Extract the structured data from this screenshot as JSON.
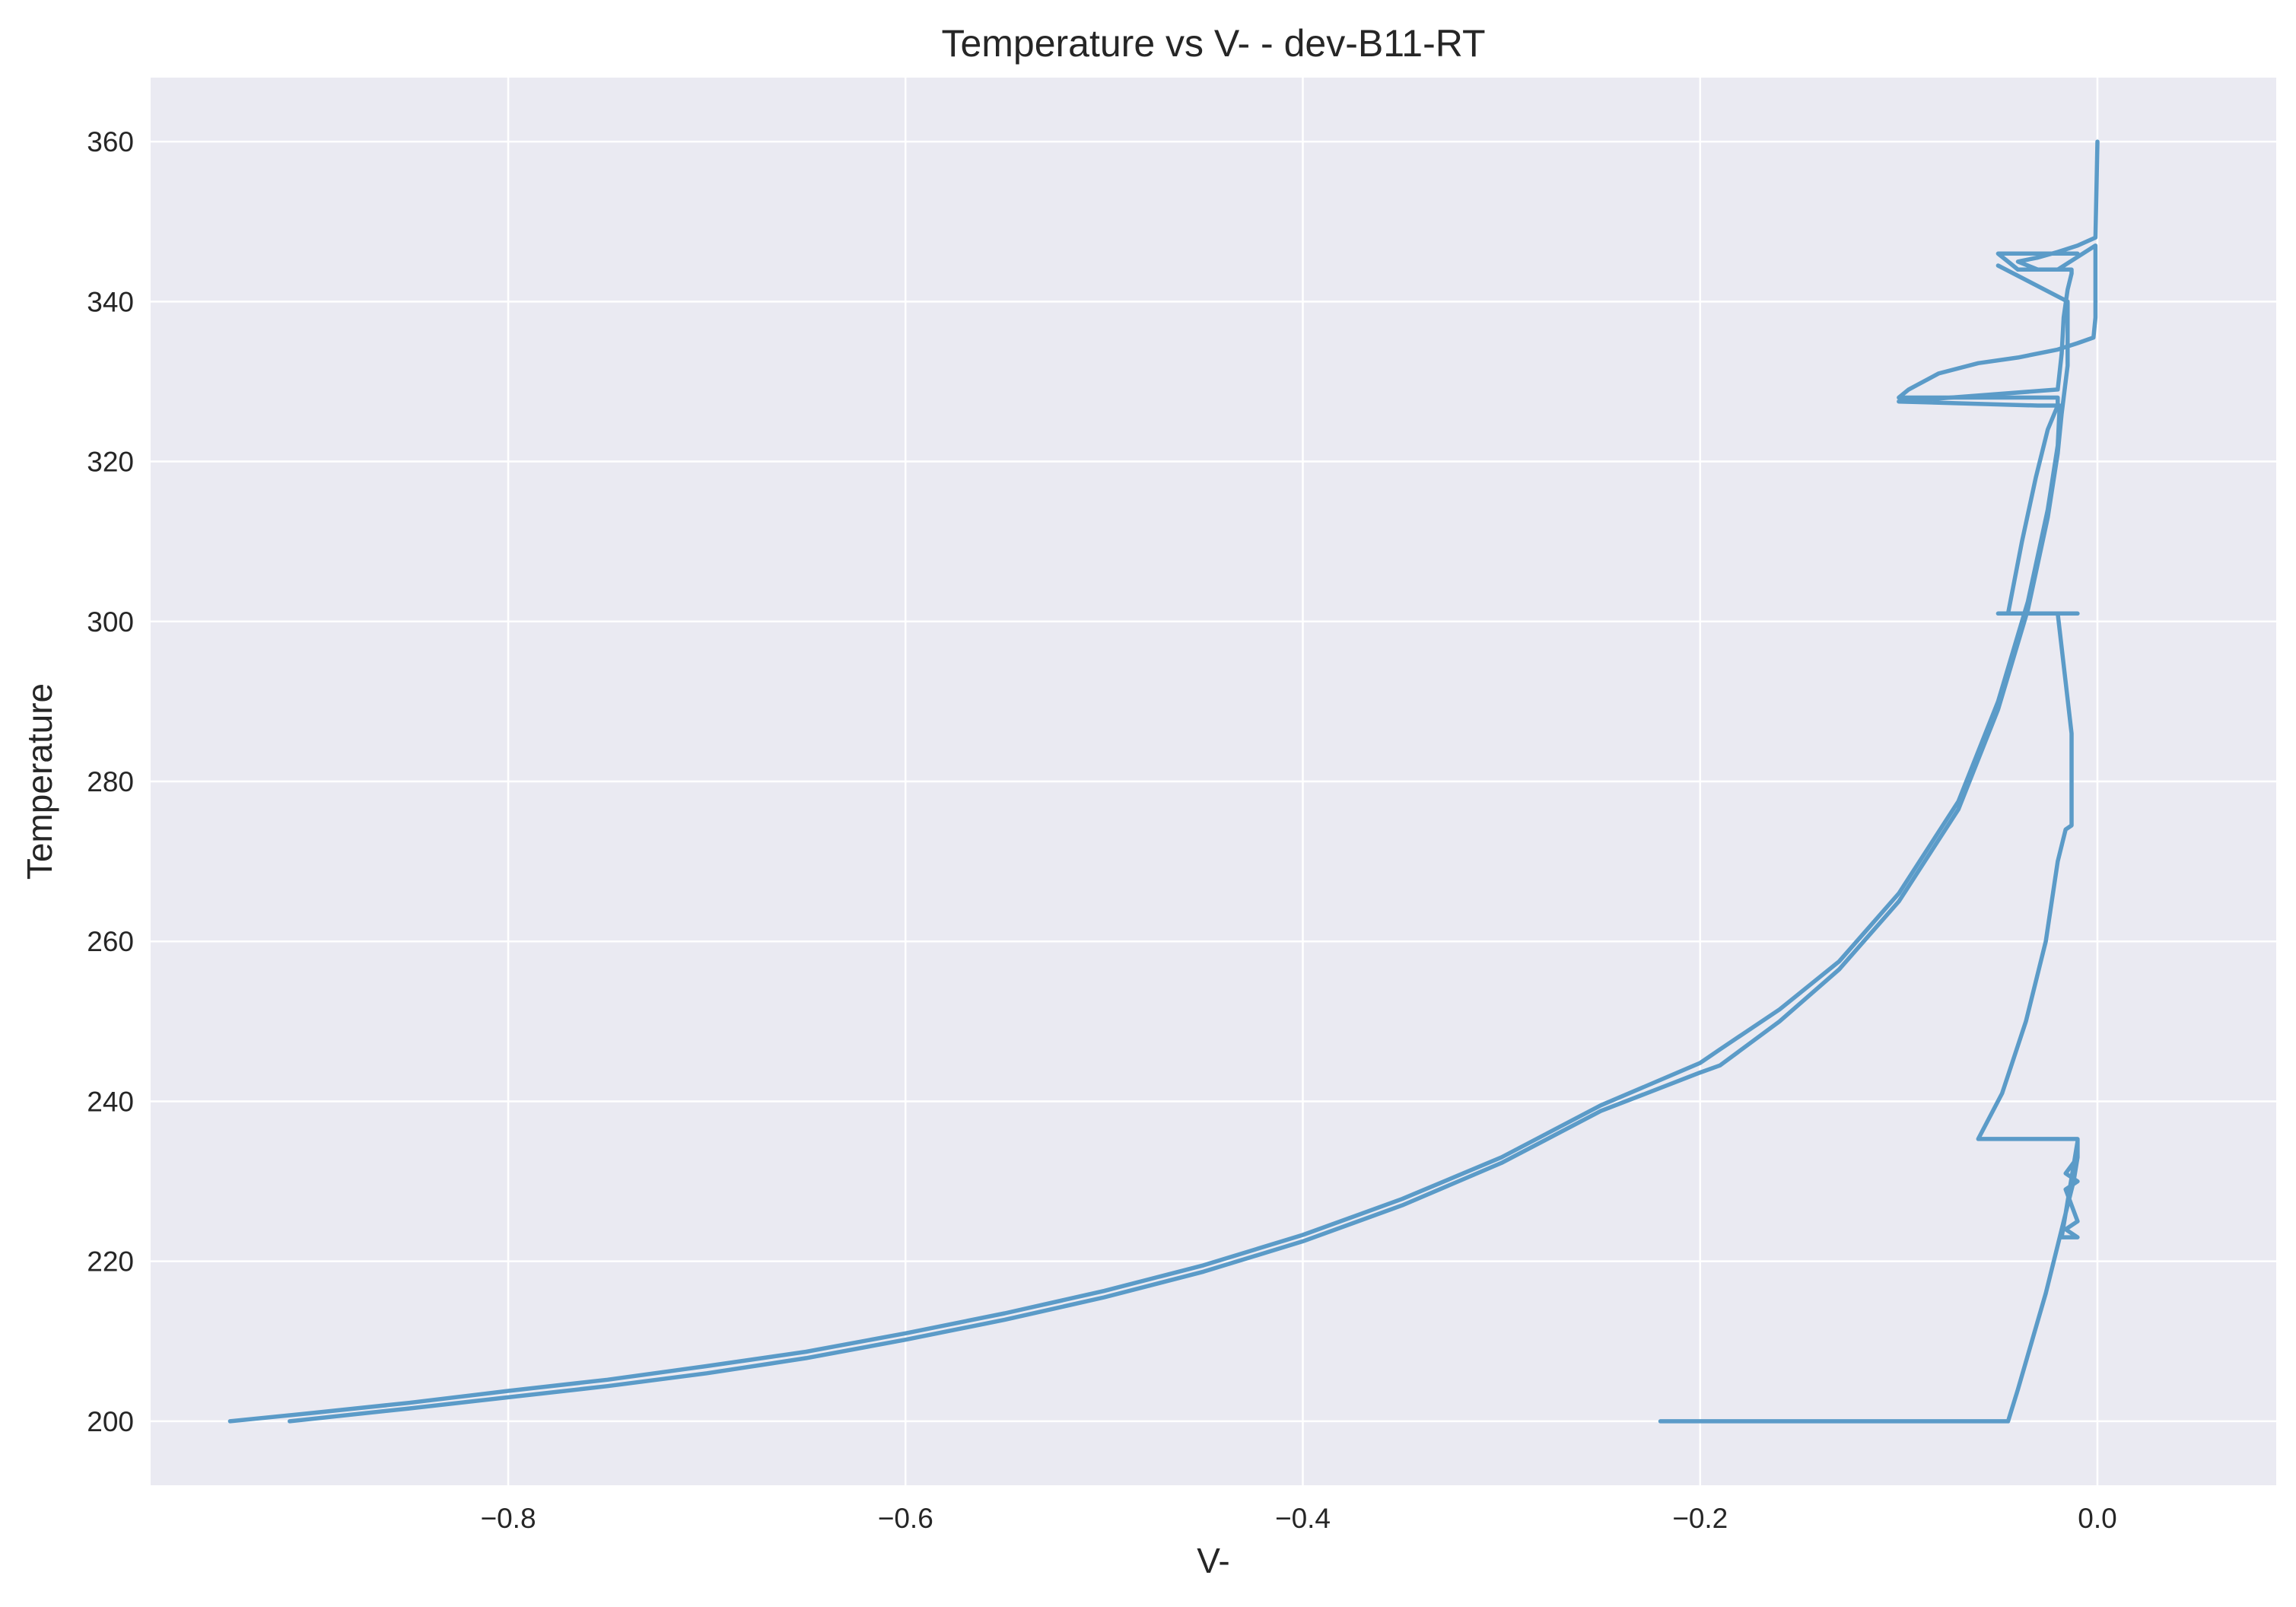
{
  "chart_data": {
    "type": "line",
    "title": "Temperature vs V- - dev-B11-RT",
    "xlabel": "V-",
    "ylabel": "Temperature",
    "xlim": [
      -0.98,
      0.09
    ],
    "ylim": [
      192,
      368
    ],
    "xticks": [
      -0.8,
      -0.6,
      -0.4,
      -0.2,
      0.0
    ],
    "xtick_labels": [
      "−0.8",
      "−0.6",
      "−0.4",
      "−0.2",
      "0.0"
    ],
    "yticks": [
      200,
      220,
      240,
      260,
      280,
      300,
      320,
      340,
      360
    ],
    "ytick_labels": [
      "200",
      "220",
      "240",
      "260",
      "280",
      "300",
      "320",
      "340",
      "360"
    ],
    "grid": true,
    "background": "#eaeaf2",
    "color": "#5b9bc8",
    "series": [
      {
        "name": "",
        "x": [
          -0.22,
          -0.045,
          -0.04,
          -0.033,
          -0.026,
          -0.02,
          -0.015,
          -0.012,
          -0.01,
          -0.01,
          -0.018,
          -0.01,
          -0.016,
          -0.01,
          -0.016,
          -0.01,
          -0.016,
          -0.01,
          -0.01,
          -0.06,
          -0.048,
          -0.036,
          -0.026,
          -0.02,
          -0.016,
          -0.013,
          -0.013,
          -0.013,
          -0.013,
          -0.02,
          -0.02,
          -0.013,
          -0.013,
          -0.012,
          -0.01,
          -0.045,
          -0.05,
          -0.045,
          -0.038,
          -0.031,
          -0.025,
          -0.02,
          -0.02,
          -0.1,
          -0.095,
          -0.08,
          -0.06,
          -0.04,
          -0.02,
          -0.01,
          -0.002,
          -0.001,
          -0.001,
          -0.001,
          -0.001,
          -0.02,
          -0.03,
          -0.04,
          -0.03,
          -0.02,
          -0.01,
          -0.001,
          0.0
        ],
        "y": [
          200,
          200,
          204,
          210,
          216,
          222,
          227,
          230,
          233,
          235,
          223,
          223,
          224,
          225,
          229,
          230,
          231,
          233,
          235.3,
          235.3,
          241,
          250,
          260,
          270,
          274,
          274.5,
          276,
          280,
          286,
          301,
          301,
          301,
          301,
          301,
          301,
          301,
          301,
          301,
          310,
          318,
          324,
          327,
          328,
          328,
          329,
          331,
          332.3,
          333,
          334,
          334.8,
          335.5,
          338,
          342,
          345,
          347,
          344,
          344,
          345,
          345.5,
          346.2,
          347,
          348,
          360
        ]
      },
      {
        "name": "",
        "x": [
          -0.94,
          -0.9,
          -0.85,
          -0.8,
          -0.75,
          -0.7,
          -0.65,
          -0.6,
          -0.55,
          -0.5,
          -0.45,
          -0.4,
          -0.35,
          -0.3,
          -0.25,
          -0.2,
          -0.19,
          -0.16,
          -0.13,
          -0.1,
          -0.07,
          -0.05,
          -0.035,
          -0.025,
          -0.02,
          -0.019,
          -0.025,
          -0.03,
          -0.1,
          -0.02,
          -0.018,
          -0.017,
          -0.015,
          -0.013,
          -0.013,
          -0.04,
          -0.045,
          -0.05,
          -0.01
        ],
        "y": [
          200,
          201,
          202.3,
          203.8,
          205.2,
          206.9,
          208.7,
          211,
          213.5,
          216.3,
          219.5,
          223.3,
          227.8,
          233,
          239.5,
          244.8,
          246.5,
          251.5,
          257.5,
          266,
          277.5,
          290,
          302.5,
          314,
          322,
          327,
          327,
          327,
          327.5,
          329,
          333.5,
          338,
          341.5,
          343.5,
          344,
          344,
          345,
          346,
          346
        ]
      },
      {
        "name": "",
        "x": [
          -0.91,
          -0.85,
          -0.8,
          -0.75,
          -0.7,
          -0.65,
          -0.6,
          -0.55,
          -0.5,
          -0.45,
          -0.4,
          -0.35,
          -0.3,
          -0.25,
          -0.2,
          -0.19,
          -0.16,
          -0.13,
          -0.1,
          -0.07,
          -0.05,
          -0.035,
          -0.025,
          -0.02,
          -0.018,
          -0.015,
          -0.015,
          -0.05
        ],
        "y": [
          200,
          201.6,
          203,
          204.4,
          206,
          207.9,
          210.2,
          212.7,
          215.5,
          218.7,
          222.5,
          227,
          232.3,
          238.8,
          243.6,
          244.5,
          250,
          256.5,
          265,
          276.5,
          289,
          301.5,
          313,
          321,
          326,
          332,
          340,
          344.5
        ]
      }
    ]
  }
}
